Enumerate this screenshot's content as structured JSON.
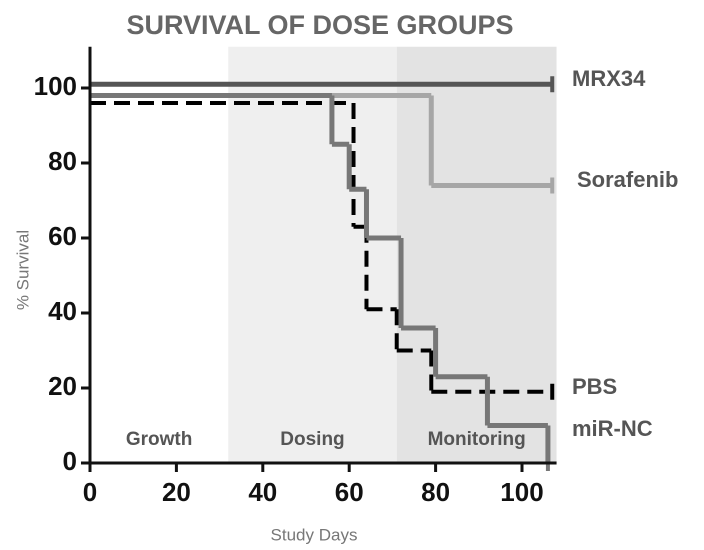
{
  "chart_data": {
    "type": "step",
    "title": "SURVIVAL OF DOSE GROUPS",
    "xlabel": "Study Days",
    "ylabel": "% Survival",
    "xlim": [
      0,
      108
    ],
    "xticks": [
      0,
      20,
      40,
      60,
      80,
      100
    ],
    "ylim": [
      0,
      111
    ],
    "yticks": [
      0,
      20,
      40,
      60,
      80,
      100
    ],
    "regions": [
      {
        "label": "Growth",
        "start": 0,
        "end": 32,
        "color": "#ffffff"
      },
      {
        "label": "Dosing",
        "start": 32,
        "end": 71,
        "color": "#efefef"
      },
      {
        "label": "Monitoring",
        "start": 71,
        "end": 108,
        "color": "#e3e3e3"
      }
    ],
    "series": [
      {
        "name": "MRX34",
        "color": "#555555",
        "dashed": false,
        "x": [
          0,
          107
        ],
        "values": [
          101,
          101
        ]
      },
      {
        "name": "Sorafenib",
        "color": "#a6a6a6",
        "dashed": false,
        "x": [
          0,
          79,
          107
        ],
        "values": [
          98,
          74,
          74
        ]
      },
      {
        "name": "PBS",
        "color": "#000000",
        "dashed": true,
        "x": [
          0,
          61,
          64,
          71,
          79,
          107
        ],
        "values": [
          96,
          63,
          41,
          30,
          19,
          19
        ]
      },
      {
        "name": "miR-NC",
        "color": "#777777",
        "dashed": false,
        "x": [
          0,
          56,
          60,
          64,
          72,
          80,
          92,
          106
        ],
        "values": [
          98,
          85,
          73,
          60,
          36,
          23,
          10,
          0
        ]
      }
    ]
  }
}
